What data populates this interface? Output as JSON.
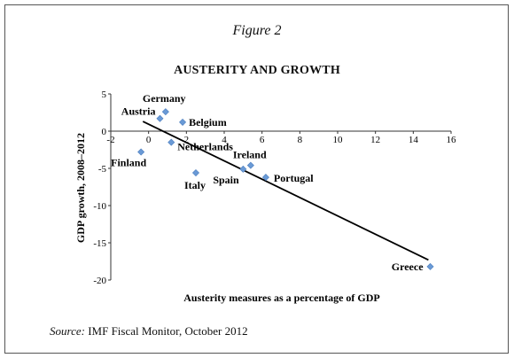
{
  "figure_label": "Figure 2",
  "source": {
    "label": "Source:",
    "text": "IMF Fiscal Monitor, October 2012"
  },
  "chart_data": {
    "type": "scatter",
    "title": "AUSTERITY AND GROWTH",
    "xlabel": "Austerity measures as a percentage of GDP",
    "ylabel": "GDP growth, 2008–2012",
    "xlim": [
      -2,
      16
    ],
    "ylim": [
      -20,
      5
    ],
    "xticks": [
      -2,
      0,
      2,
      4,
      6,
      8,
      10,
      12,
      14,
      16
    ],
    "yticks": [
      5,
      0,
      -5,
      -10,
      -15,
      -20
    ],
    "grid": false,
    "point_color": "#6a9ad6",
    "trendline": {
      "x": [
        -0.3,
        14.8
      ],
      "y": [
        1.3,
        -17.3
      ],
      "color": "#000000"
    },
    "points": [
      {
        "label": "Germany",
        "x": 0.9,
        "y": 2.6
      },
      {
        "label": "Austria",
        "x": 0.6,
        "y": 1.7
      },
      {
        "label": "Belgium",
        "x": 1.8,
        "y": 1.2
      },
      {
        "label": "Netherlands",
        "x": 1.2,
        "y": -1.5
      },
      {
        "label": "Finland",
        "x": -0.4,
        "y": -2.8
      },
      {
        "label": "Italy",
        "x": 2.5,
        "y": -5.6
      },
      {
        "label": "Ireland",
        "x": 5.4,
        "y": -4.6
      },
      {
        "label": "Spain",
        "x": 5.0,
        "y": -5.1
      },
      {
        "label": "Portugal",
        "x": 6.2,
        "y": -6.2
      },
      {
        "label": "Greece",
        "x": 14.9,
        "y": -18.2
      }
    ]
  }
}
